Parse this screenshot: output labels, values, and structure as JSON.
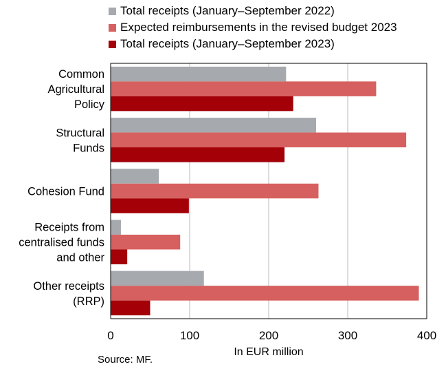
{
  "chart_data": {
    "type": "bar",
    "orientation": "horizontal",
    "categories": [
      [
        "Common",
        "Agricultural",
        "Policy"
      ],
      [
        "Structural",
        "Funds"
      ],
      [
        "Cohesion Fund"
      ],
      [
        "Receipts from",
        "centralised funds",
        "and other"
      ],
      [
        "Other receipts",
        "(RRP)"
      ]
    ],
    "series": [
      {
        "name": "Total receipts (January–September 2022)",
        "color": "#a6a9ad",
        "values": [
          222,
          260,
          61,
          13,
          118
        ]
      },
      {
        "name": "Expected reimbursements in the revised budget 2023",
        "color": "#d6605f",
        "values": [
          336,
          374,
          263,
          88,
          390
        ]
      },
      {
        "name": "Total receipts (January–September 2023)",
        "color": "#a30008",
        "values": [
          231,
          220,
          99,
          21,
          50
        ]
      }
    ],
    "xlabel": "In EUR million",
    "xlim": [
      0,
      400
    ],
    "xticks": [
      0,
      100,
      200,
      300,
      400
    ],
    "grid": "vertical",
    "legend_position": "top"
  },
  "source": "Source: MF."
}
